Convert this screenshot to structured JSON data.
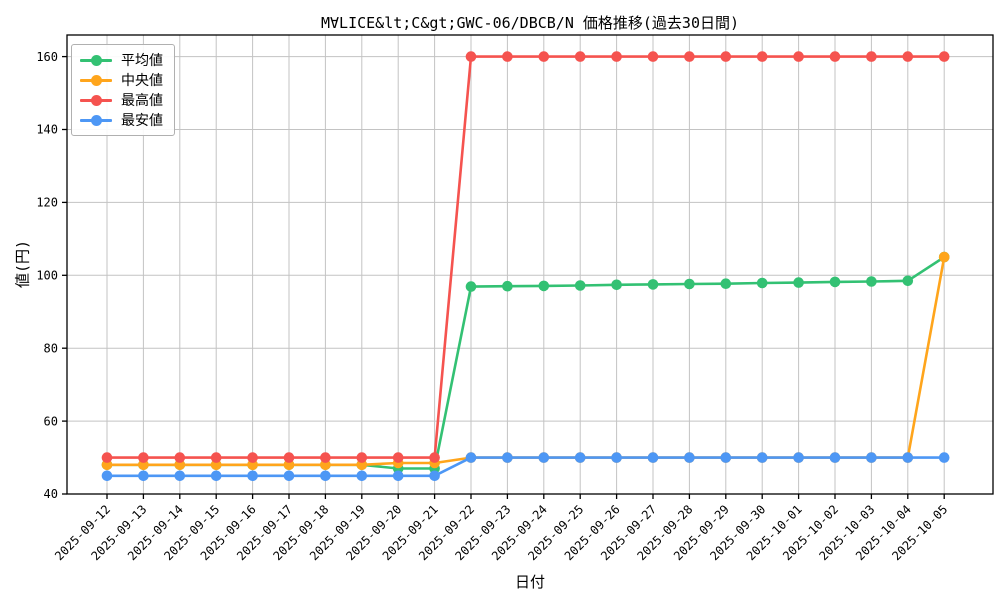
{
  "chart_data": {
    "type": "line",
    "title": "M∀LICE&lt;C&gt;GWC-06/DBCB/N 価格推移(過去30日間)",
    "xlabel": "日付",
    "ylabel": "値(円)",
    "x": [
      "2025-09-12",
      "2025-09-13",
      "2025-09-14",
      "2025-09-15",
      "2025-09-16",
      "2025-09-17",
      "2025-09-18",
      "2025-09-19",
      "2025-09-20",
      "2025-09-21",
      "2025-09-22",
      "2025-09-23",
      "2025-09-24",
      "2025-09-25",
      "2025-09-26",
      "2025-09-27",
      "2025-09-28",
      "2025-09-29",
      "2025-09-30",
      "2025-10-01",
      "2025-10-02",
      "2025-10-03",
      "2025-10-04",
      "2025-10-05"
    ],
    "yticks": [
      40,
      60,
      80,
      100,
      120,
      140,
      160
    ],
    "ylim": [
      39.5,
      166
    ],
    "grid": true,
    "legend_position": "upper left",
    "series": [
      {
        "id": "mean",
        "name": "平均値",
        "color": "#33c173",
        "values": [
          48,
          48,
          48,
          48,
          48,
          48,
          48,
          48,
          47,
          47,
          96.9,
          97,
          97.1,
          97.2,
          97.4,
          97.5,
          97.6,
          97.7,
          97.9,
          98,
          98.2,
          98.3,
          98.5,
          105
        ]
      },
      {
        "id": "median",
        "name": "中央値",
        "color": "#ffa51c",
        "values": [
          48,
          48,
          48,
          48,
          48,
          48,
          48,
          48,
          48.5,
          48.5,
          50,
          50,
          50,
          50,
          50,
          50,
          50,
          50,
          50,
          50,
          50,
          50,
          50,
          105
        ]
      },
      {
        "id": "max",
        "name": "最高値",
        "color": "#f5534f",
        "values": [
          50,
          50,
          50,
          50,
          50,
          50,
          50,
          50,
          50,
          50,
          160,
          160,
          160,
          160,
          160,
          160,
          160,
          160,
          160,
          160,
          160,
          160,
          160,
          160
        ]
      },
      {
        "id": "min",
        "name": "最安値",
        "color": "#4d97f5",
        "values": [
          45,
          45,
          45,
          45,
          45,
          45,
          45,
          45,
          45,
          45,
          50,
          50,
          50,
          50,
          50,
          50,
          50,
          50,
          50,
          50,
          50,
          50,
          50,
          50
        ]
      }
    ],
    "colors": {
      "grid": "#c3c3c3",
      "spine": "#000000",
      "background": "#ffffff",
      "text": "#000000"
    }
  }
}
